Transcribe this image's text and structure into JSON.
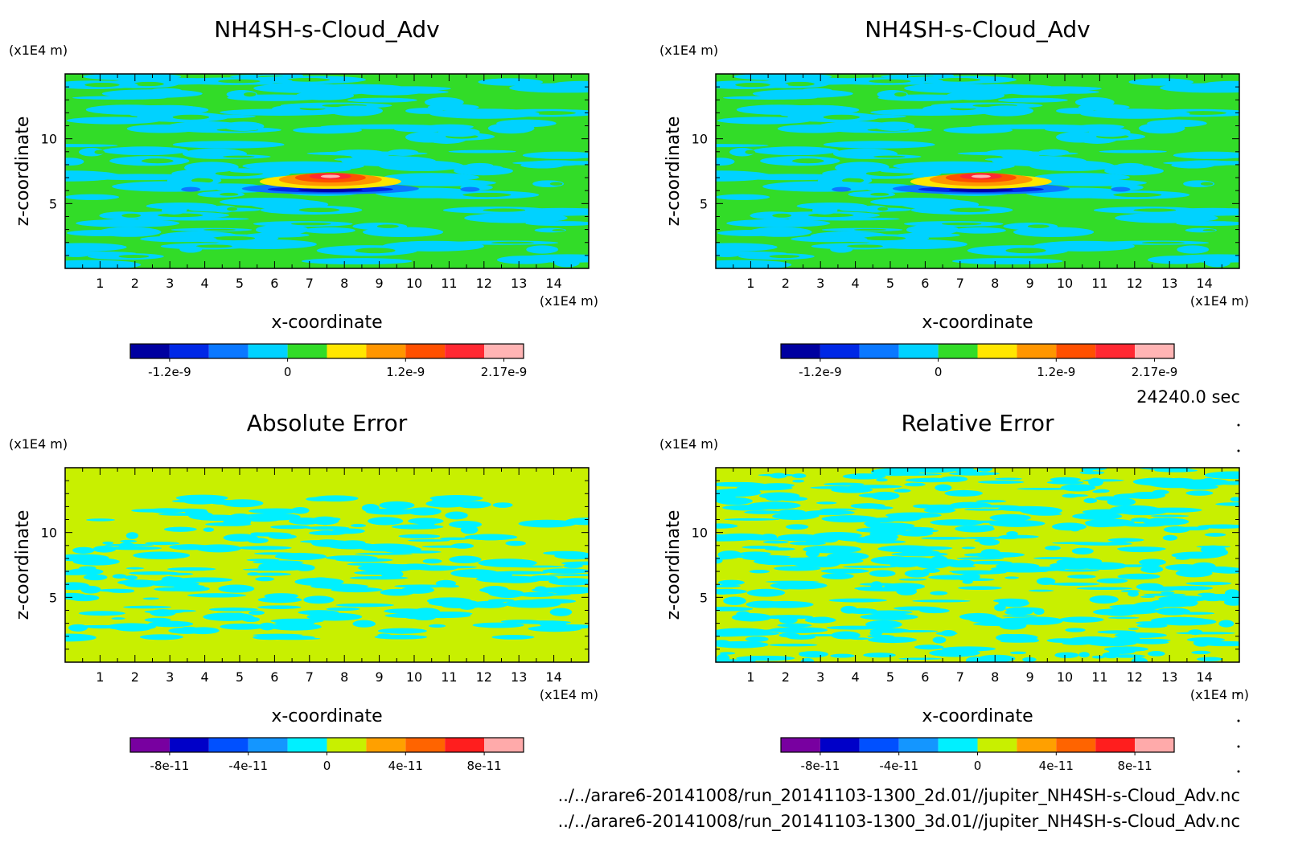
{
  "time_label": "24240.0 sec",
  "files": [
    "../../arare6-20141008/run_20141103-1300_2d.01//jupiter_NH4SH-s-Cloud_Adv.nc",
    "../../arare6-20141008/run_20141103-1300_3d.01//jupiter_NH4SH-s-Cloud_Adv.nc"
  ],
  "chart_data": [
    {
      "type": "heatmap",
      "title": "NH4SH-s-Cloud_Adv",
      "xlabel": "x-coordinate",
      "ylabel": "z-coordinate",
      "x_unit": "(x1E4 m)",
      "y_unit": "(x1E4 m)",
      "xlim": [
        0,
        15
      ],
      "ylim": [
        0,
        15
      ],
      "x_ticks": [
        "1",
        "2",
        "3",
        "4",
        "5",
        "6",
        "7",
        "8",
        "9",
        "10",
        "11",
        "12",
        "13",
        "14"
      ],
      "y_ticks": [
        "5",
        "10"
      ],
      "colorbar": {
        "colors": [
          "#0000a0",
          "#0028e6",
          "#0a78ff",
          "#00d2ff",
          "#32dc28",
          "#ffe600",
          "#ff9600",
          "#ff5000",
          "#ff2832",
          "#ffb4b4"
        ],
        "tick_labels": [
          "-1.2e-9",
          "0",
          "1.2e-9",
          "2.17e-9"
        ]
      }
    },
    {
      "type": "heatmap",
      "title": "NH4SH-s-Cloud_Adv",
      "xlabel": "x-coordinate",
      "ylabel": "z-coordinate",
      "x_unit": "(x1E4 m)",
      "y_unit": "(x1E4 m)",
      "xlim": [
        0,
        15
      ],
      "ylim": [
        0,
        15
      ],
      "x_ticks": [
        "1",
        "2",
        "3",
        "4",
        "5",
        "6",
        "7",
        "8",
        "9",
        "10",
        "11",
        "12",
        "13",
        "14"
      ],
      "y_ticks": [
        "5",
        "10"
      ],
      "colorbar": {
        "colors": [
          "#0000a0",
          "#0028e6",
          "#0a78ff",
          "#00d2ff",
          "#32dc28",
          "#ffe600",
          "#ff9600",
          "#ff5000",
          "#ff2832",
          "#ffb4b4"
        ],
        "tick_labels": [
          "-1.2e-9",
          "0",
          "1.2e-9",
          "2.17e-9"
        ]
      }
    },
    {
      "type": "heatmap",
      "title": "Absolute Error",
      "xlabel": "x-coordinate",
      "ylabel": "z-coordinate",
      "x_unit": "(x1E4 m)",
      "y_unit": "(x1E4 m)",
      "xlim": [
        0,
        15
      ],
      "ylim": [
        0,
        15
      ],
      "x_ticks": [
        "1",
        "2",
        "3",
        "4",
        "5",
        "6",
        "7",
        "8",
        "9",
        "10",
        "11",
        "12",
        "13",
        "14"
      ],
      "y_ticks": [
        "5",
        "10"
      ],
      "colorbar": {
        "colors": [
          "#7800a0",
          "#0000c8",
          "#0050ff",
          "#1496ff",
          "#00f0ff",
          "#c8f000",
          "#ffa000",
          "#ff6400",
          "#ff1e1e",
          "#ffaaaa"
        ],
        "tick_labels": [
          "-8e-11",
          "-4e-11",
          "0",
          "4e-11",
          "8e-11"
        ]
      }
    },
    {
      "type": "heatmap",
      "title": "Relative Error",
      "xlabel": "x-coordinate",
      "ylabel": "z-coordinate",
      "x_unit": "(x1E4 m)",
      "y_unit": "(x1E4 m)",
      "xlim": [
        0,
        15
      ],
      "ylim": [
        0,
        15
      ],
      "x_ticks": [
        "1",
        "2",
        "3",
        "4",
        "5",
        "6",
        "7",
        "8",
        "9",
        "10",
        "11",
        "12",
        "13",
        "14"
      ],
      "y_ticks": [
        "5",
        "10"
      ],
      "colorbar": {
        "colors": [
          "#7800a0",
          "#0000c8",
          "#0050ff",
          "#1496ff",
          "#00f0ff",
          "#c8f000",
          "#ffa000",
          "#ff6400",
          "#ff1e1e",
          "#ffaaaa"
        ],
        "tick_labels": [
          "-8e-11",
          "-4e-11",
          "0",
          "4e-11",
          "8e-11"
        ]
      }
    }
  ]
}
